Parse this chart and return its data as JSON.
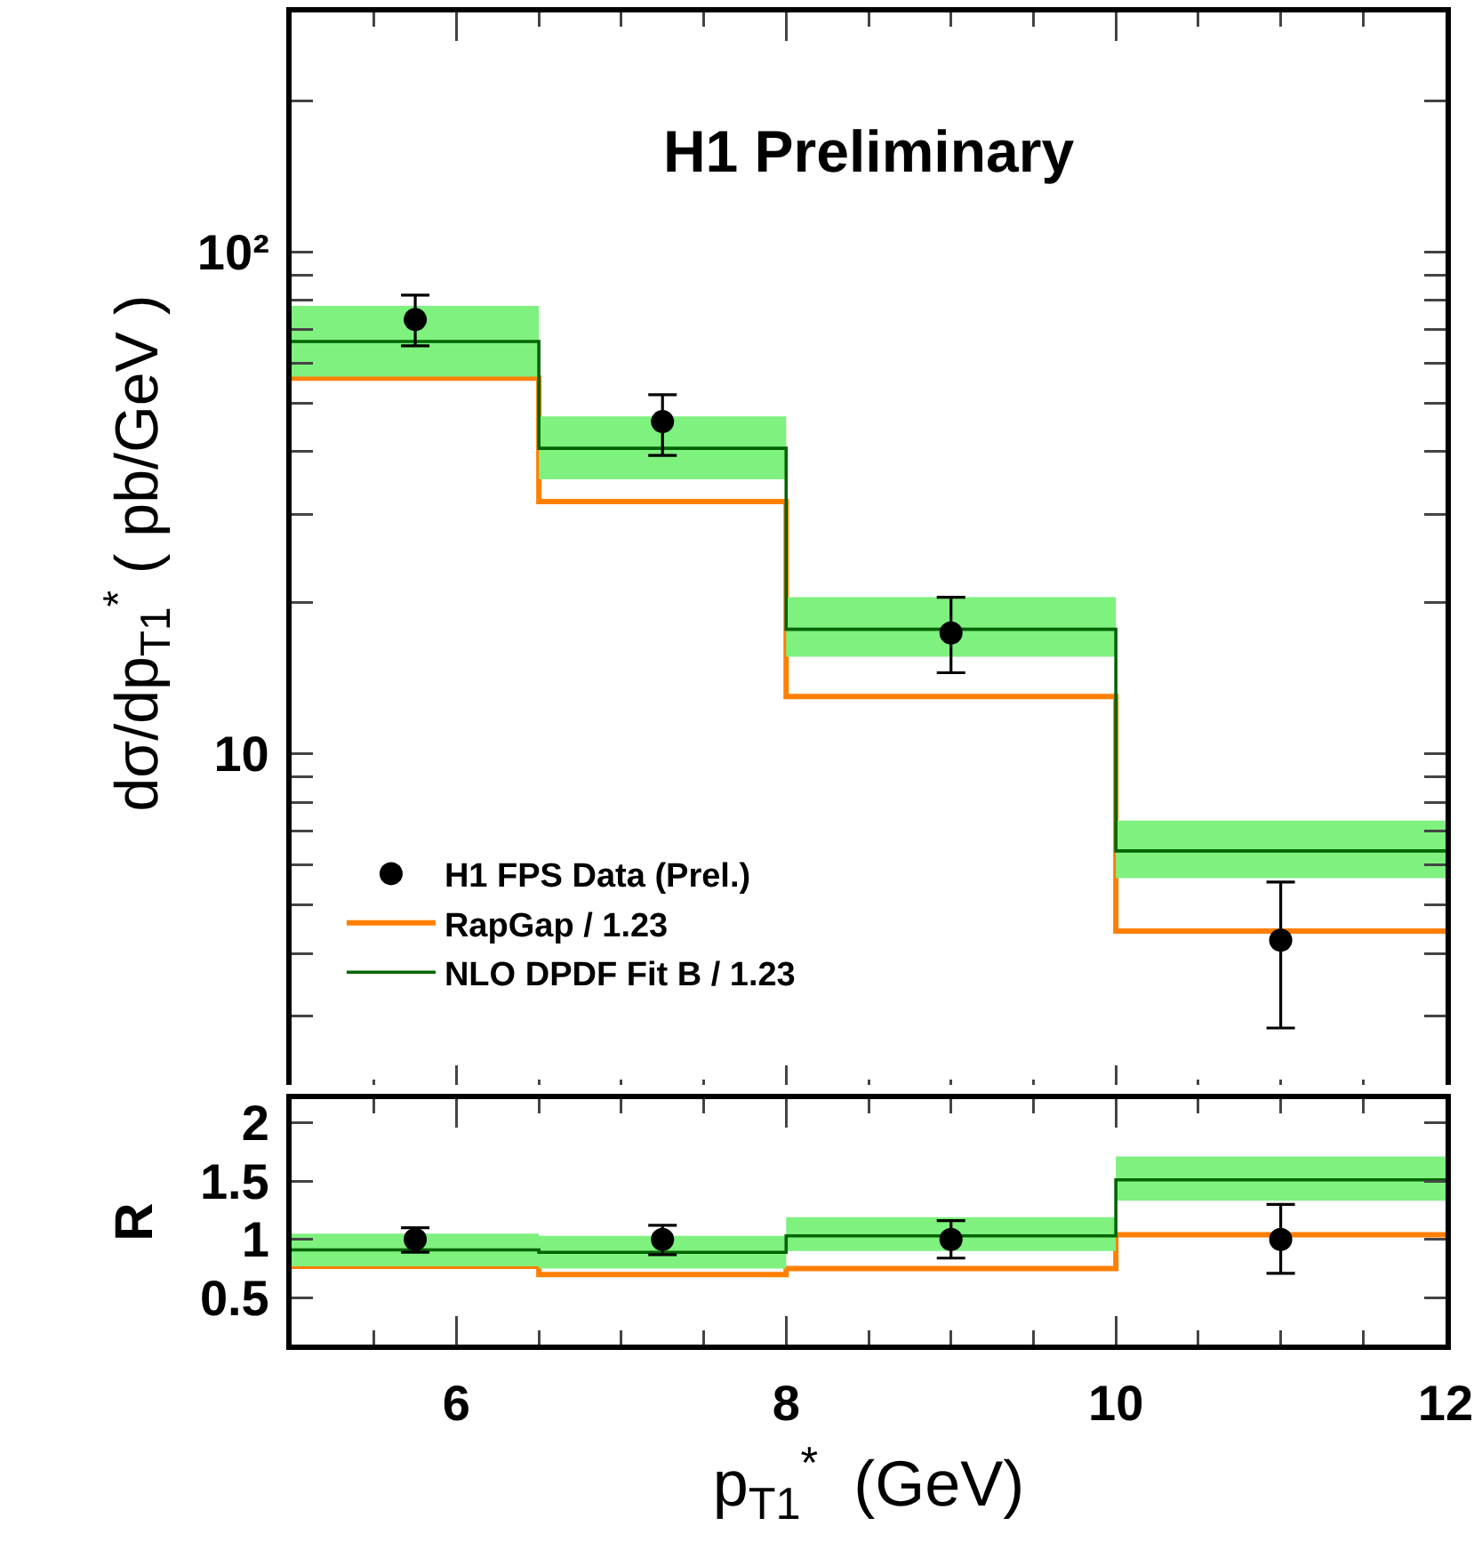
{
  "chart_data": [
    {
      "type": "step",
      "title": "H1 Preliminary",
      "ylabel": "dσ/dp$_{T1}$$^{*}$ ( pb/GeV )",
      "log": true,
      "grid": false,
      "legend": "bottom left",
      "tick_labels": "y",
      "xlim": [
        5,
        12
      ],
      "xticks": [
        6,
        8,
        10,
        12
      ],
      "ylim": [
        2.1,
        300
      ],
      "yticks": [
        {
          "value": 3,
          "label": null
        },
        {
          "value": 4,
          "label": null
        },
        {
          "value": 5,
          "label": null
        },
        {
          "value": 6,
          "label": null
        },
        {
          "value": 7,
          "label": null
        },
        {
          "value": 8,
          "label": null
        },
        {
          "value": 9,
          "label": null
        },
        10,
        {
          "value": 20,
          "label": null
        },
        {
          "value": 30,
          "label": null
        },
        {
          "value": 40,
          "label": null
        },
        {
          "value": 50,
          "label": null
        },
        {
          "value": 60,
          "label": null
        },
        {
          "value": 70,
          "label": null
        },
        {
          "value": 80,
          "label": null
        },
        {
          "value": 90,
          "label": null
        },
        {
          "value": 100,
          "label": "10²"
        },
        {
          "value": 200,
          "label": null
        }
      ],
      "series": [
        {
          "name": "H1 FPS Data (Prel.)",
          "type": "scatter",
          "marker": "circle",
          "color": "#000000",
          "x": [
            5.75,
            7.25,
            9,
            11
          ],
          "values": [
            73.3,
            45.9,
            17.4,
            4.25
          ],
          "errors": [
            [
              65,
              82
            ],
            [
              39.3,
              51.9
            ],
            [
              14.5,
              20.5
            ],
            [
              2.84,
              5.55
            ]
          ]
        },
        {
          "name": "RapGap / 1.23",
          "color": "#ff7f00",
          "x": [
            5,
            6.5,
            8,
            10,
            12
          ],
          "values": [
            56,
            31.8,
            13,
            4.43,
            4.43
          ]
        },
        {
          "name": "NLO DPDF Fit B / 1.23",
          "color": "#006400",
          "x": [
            5,
            6.5,
            8,
            10,
            12
          ],
          "values": [
            66.3,
            40.6,
            17.7,
            6.4,
            6.4
          ],
          "lower": [
            56.4,
            35.2,
            15.6,
            5.65,
            5.65
          ],
          "upper": [
            78,
            47,
            20.5,
            7.36,
            7.36
          ]
        }
      ]
    },
    {
      "type": "step",
      "xlabel": "p$_{T1}$$^{*}$  (GeV)",
      "ylabel": "R",
      "grid": false,
      "legend": false,
      "xlim": [
        5,
        12
      ],
      "xticks": [
        6,
        8,
        10,
        12
      ],
      "ylim": [
        0.1,
        2.2
      ],
      "yticks": [
        0.5,
        1,
        1.5,
        2
      ],
      "series": [
        {
          "type": "scatter",
          "marker": "circle",
          "color": "#000000",
          "x": [
            5.75,
            7.25,
            9,
            11
          ],
          "values": [
            1,
            1,
            1,
            1
          ],
          "errors": [
            [
              0.89,
              1.1
            ],
            [
              0.87,
              1.12
            ],
            [
              0.84,
              1.16
            ],
            [
              0.71,
              1.3
            ]
          ]
        },
        {
          "color": "#ff7f00",
          "x": [
            5,
            6.5,
            8,
            10,
            12
          ],
          "values": [
            0.77,
            0.7,
            0.75,
            1.04,
            1.04
          ]
        },
        {
          "color": "#006400",
          "x": [
            5,
            6.5,
            8,
            10,
            12
          ],
          "values": [
            0.91,
            0.89,
            1.03,
            1.51,
            1.51
          ],
          "lower": [
            0.77,
            0.75,
            0.9,
            1.33,
            1.33
          ],
          "upper": [
            1.05,
            1.03,
            1.19,
            1.71,
            1.71
          ]
        }
      ]
    }
  ]
}
